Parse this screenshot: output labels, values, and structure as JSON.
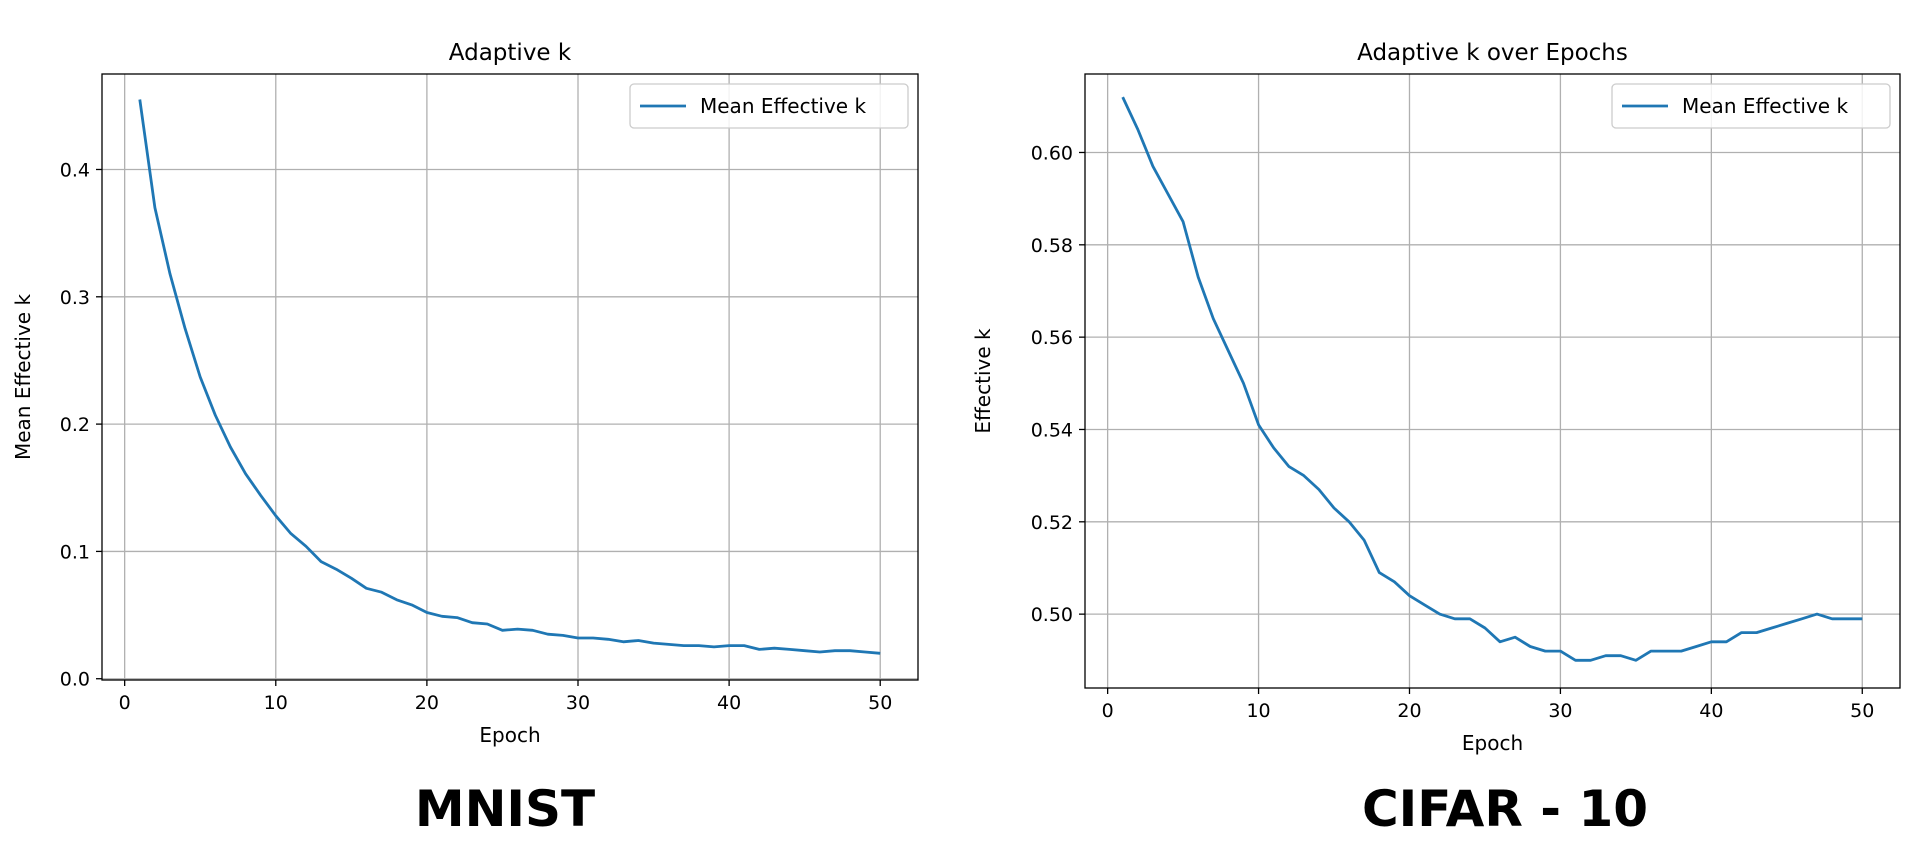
{
  "chart_data": [
    {
      "type": "line",
      "title": "Adaptive k",
      "xlabel": "Epoch",
      "ylabel": "Mean Effective k",
      "xlim": [
        -1.5,
        52.5
      ],
      "ylim": [
        -0.001,
        0.475
      ],
      "xticks": [
        0,
        10,
        20,
        30,
        40,
        50
      ],
      "yticks": [
        0.0,
        0.1,
        0.2,
        0.3,
        0.4
      ],
      "ytick_labels": [
        "0.0",
        "0.1",
        "0.2",
        "0.3",
        "0.4"
      ],
      "grid": true,
      "legend_position": "top-right",
      "caption": "MNIST",
      "series": [
        {
          "name": "Mean Effective k",
          "color": "#1f77b4",
          "x": [
            1,
            2,
            3,
            4,
            5,
            6,
            7,
            8,
            9,
            10,
            11,
            12,
            13,
            14,
            15,
            16,
            17,
            18,
            19,
            20,
            21,
            22,
            23,
            24,
            25,
            26,
            27,
            28,
            29,
            30,
            31,
            32,
            33,
            34,
            35,
            36,
            37,
            38,
            39,
            40,
            41,
            42,
            43,
            44,
            45,
            46,
            47,
            48,
            49,
            50
          ],
          "values": [
            0.455,
            0.37,
            0.318,
            0.275,
            0.237,
            0.207,
            0.182,
            0.161,
            0.144,
            0.128,
            0.114,
            0.104,
            0.092,
            0.086,
            0.079,
            0.071,
            0.068,
            0.062,
            0.058,
            0.052,
            0.049,
            0.048,
            0.044,
            0.043,
            0.038,
            0.039,
            0.038,
            0.035,
            0.034,
            0.032,
            0.032,
            0.031,
            0.029,
            0.03,
            0.028,
            0.027,
            0.026,
            0.026,
            0.025,
            0.026,
            0.026,
            0.023,
            0.024,
            0.023,
            0.022,
            0.021,
            0.022,
            0.022,
            0.021,
            0.02
          ]
        }
      ]
    },
    {
      "type": "line",
      "title": "Adaptive k over Epochs",
      "xlabel": "Epoch",
      "ylabel": "Effective k",
      "xlim": [
        -1.5,
        52.5
      ],
      "ylim": [
        0.484,
        0.617
      ],
      "xticks": [
        0,
        10,
        20,
        30,
        40,
        50
      ],
      "yticks": [
        0.5,
        0.52,
        0.54,
        0.56,
        0.58,
        0.6
      ],
      "ytick_labels": [
        "0.50",
        "0.52",
        "0.54",
        "0.56",
        "0.58",
        "0.60"
      ],
      "grid": true,
      "legend_position": "top-right",
      "caption": "CIFAR - 10",
      "series": [
        {
          "name": "Mean Effective k",
          "color": "#1f77b4",
          "x": [
            1,
            2,
            3,
            4,
            5,
            6,
            7,
            8,
            9,
            10,
            11,
            12,
            13,
            14,
            15,
            16,
            17,
            18,
            19,
            20,
            21,
            22,
            23,
            24,
            25,
            26,
            27,
            28,
            29,
            30,
            31,
            32,
            33,
            34,
            35,
            36,
            37,
            38,
            39,
            40,
            41,
            42,
            43,
            44,
            45,
            46,
            47,
            48,
            49,
            50
          ],
          "values": [
            0.612,
            0.605,
            0.597,
            0.591,
            0.585,
            0.573,
            0.564,
            0.557,
            0.55,
            0.541,
            0.536,
            0.532,
            0.53,
            0.527,
            0.523,
            0.52,
            0.516,
            0.509,
            0.507,
            0.504,
            0.502,
            0.5,
            0.499,
            0.499,
            0.497,
            0.494,
            0.495,
            0.493,
            0.492,
            0.492,
            0.49,
            0.49,
            0.491,
            0.491,
            0.49,
            0.492,
            0.492,
            0.492,
            0.493,
            0.494,
            0.494,
            0.496,
            0.496,
            0.497,
            0.498,
            0.499,
            0.5,
            0.499,
            0.499,
            0.499
          ]
        }
      ]
    }
  ]
}
